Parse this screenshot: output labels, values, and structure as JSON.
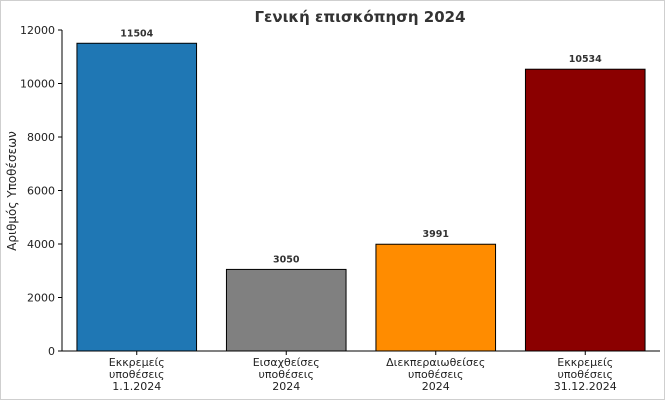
{
  "chart_data": {
    "type": "bar",
    "title": "Γενική επισκόπηση 2024",
    "ylabel": "Αριθμός Υποθέσεων",
    "xlabel": "",
    "ylim": [
      0,
      12000
    ],
    "yticks": [
      0,
      2000,
      4000,
      6000,
      8000,
      10000,
      12000
    ],
    "grid": false,
    "categories": [
      [
        "Εκκρεμείς",
        "υποθέσεις",
        "1.1.2024"
      ],
      [
        "Εισαχθείσες",
        "υποθέσεις",
        "2024"
      ],
      [
        "Διεκπεραιωθείσες",
        "υποθέσεις",
        "2024"
      ],
      [
        "Εκκρεμείς",
        "υποθέσεις",
        "31.12.2024"
      ]
    ],
    "values": [
      11504,
      3050,
      3991,
      10534
    ],
    "value_labels": [
      "11504",
      "3050",
      "3991",
      "10534"
    ],
    "colors": [
      "#1f77b4",
      "#808080",
      "#ff8c00",
      "#8b0000"
    ]
  }
}
